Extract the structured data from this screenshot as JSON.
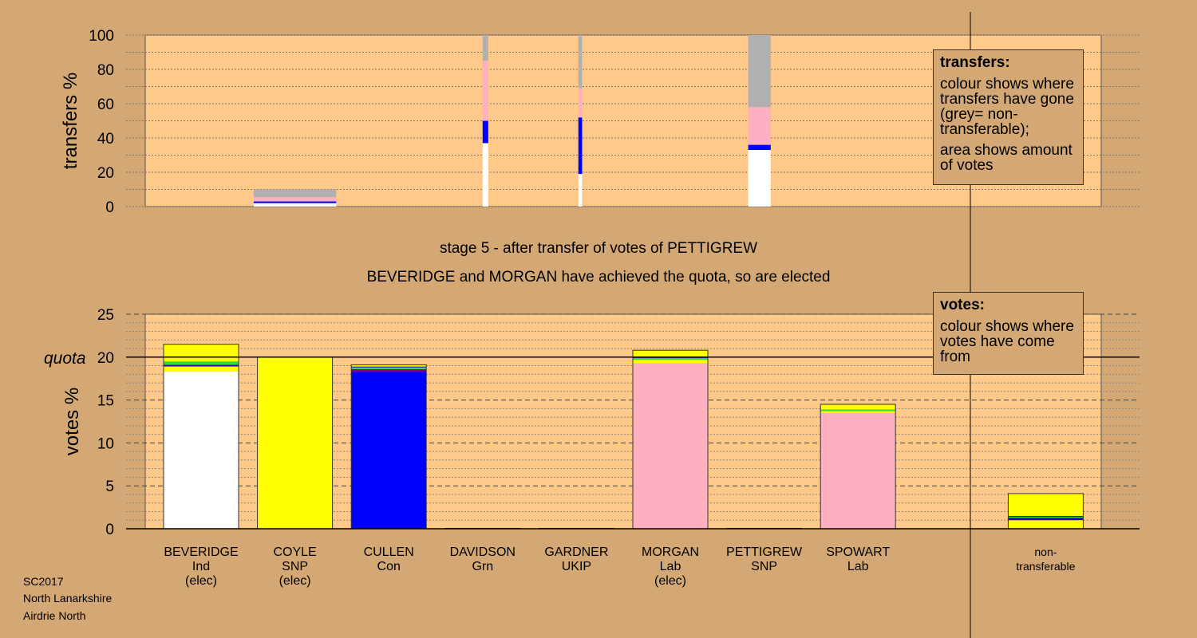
{
  "stage_title": "stage 5 - after transfer of votes of PETTIGREW",
  "elected_note": "BEVERIDGE and MORGAN have achieved the quota, so are elected",
  "footer": {
    "line1": "SC2017",
    "line2": "North Lanarkshire",
    "line3": "Airdrie North"
  },
  "legend_transfers": {
    "title": "transfers:",
    "line1": "colour shows where transfers have gone (grey= non-transferable);",
    "line2": "area shows amount of votes"
  },
  "legend_votes": {
    "title": "votes:",
    "line1": "colour shows where votes have come from"
  },
  "colors": {
    "background": "#d3a874",
    "plot_bg": "#ffc98a",
    "Ind": "#ffffff",
    "SNP": "#ffff00",
    "Con": "#0000ff",
    "Grn": "#33dd33",
    "UKIP": "#800080",
    "Lab": "#ffb0c0",
    "nontransferable": "#b0b0b0"
  },
  "chart_data": [
    {
      "type": "bar",
      "id": "transfers",
      "ylabel": "transfers %",
      "ylim": [
        0,
        100
      ],
      "yticks": [
        0,
        20,
        40,
        60,
        80,
        100
      ],
      "bars": [
        {
          "center": 1,
          "width": 0.88,
          "segments": [
            {
              "party": "Ind",
              "value": 2.0
            },
            {
              "party": "Con",
              "value": 1.0
            },
            {
              "party": "Lab",
              "value": 2.5
            },
            {
              "party": "nontransferable",
              "value": 4.5
            }
          ]
        },
        {
          "center": 3.03,
          "width": 0.06,
          "segments": [
            {
              "party": "Ind",
              "value": 37
            },
            {
              "party": "Con",
              "value": 13
            },
            {
              "party": "Lab",
              "value": 35
            },
            {
              "party": "nontransferable",
              "value": 15
            }
          ]
        },
        {
          "center": 4.04,
          "width": 0.04,
          "segments": [
            {
              "party": "Ind",
              "value": 19
            },
            {
              "party": "Con",
              "value": 33
            },
            {
              "party": "Lab",
              "value": 17
            },
            {
              "party": "nontransferable",
              "value": 31
            }
          ]
        },
        {
          "center": 5.95,
          "width": 0.24,
          "segments": [
            {
              "party": "Ind",
              "value": 33
            },
            {
              "party": "Con",
              "value": 3
            },
            {
              "party": "Lab",
              "value": 22
            },
            {
              "party": "nontransferable",
              "value": 42
            }
          ]
        }
      ]
    },
    {
      "type": "bar",
      "id": "votes",
      "ylabel": "votes %",
      "ylim": [
        0,
        25
      ],
      "yticks": [
        0,
        5,
        10,
        15,
        20,
        25
      ],
      "quota": 20,
      "quota_label": "quota",
      "categories": [
        {
          "name": "BEVERIDGE",
          "party": "Ind",
          "status": "(elec)"
        },
        {
          "name": "COYLE",
          "party": "SNP",
          "status": "(elec)"
        },
        {
          "name": "CULLEN",
          "party": "Con",
          "status": ""
        },
        {
          "name": "DAVIDSON",
          "party": "Grn",
          "status": ""
        },
        {
          "name": "GARDNER",
          "party": "UKIP",
          "status": ""
        },
        {
          "name": "MORGAN",
          "party": "Lab",
          "status": "(elec)"
        },
        {
          "name": "PETTIGREW",
          "party": "SNP",
          "status": ""
        },
        {
          "name": "SPOWART",
          "party": "Lab",
          "status": ""
        },
        {
          "name": "",
          "party": "",
          "status": ""
        },
        {
          "name": "non-",
          "party": "transferable",
          "status": ""
        }
      ],
      "segments": [
        [
          {
            "party": "Ind",
            "value": 18.3
          },
          {
            "party": "SNP",
            "value": 0.6
          },
          {
            "party": "UKIP",
            "value": 0.1
          },
          {
            "party": "Con",
            "value": 0.1
          },
          {
            "party": "Grn",
            "value": 0.4
          },
          {
            "party": "SNP",
            "value": 2.0
          }
        ],
        [
          {
            "party": "SNP",
            "value": 20.0
          }
        ],
        [
          {
            "party": "Con",
            "value": 18.3
          },
          {
            "party": "UKIP",
            "value": 0.3
          },
          {
            "party": "Grn",
            "value": 0.2
          },
          {
            "party": "Con",
            "value": 0.1
          },
          {
            "party": "SNP",
            "value": 0.2
          }
        ],
        [
          {
            "party": "Grn",
            "value": 0.05
          }
        ],
        [
          {
            "party": "UKIP",
            "value": 0.05
          }
        ],
        [
          {
            "party": "Lab",
            "value": 19.3
          },
          {
            "party": "SNP",
            "value": 0.4
          },
          {
            "party": "Grn",
            "value": 0.2
          },
          {
            "party": "Con",
            "value": 0.1
          },
          {
            "party": "SNP",
            "value": 0.8
          }
        ],
        [
          {
            "party": "SNP",
            "value": 0.05
          }
        ],
        [
          {
            "party": "Lab",
            "value": 13.5
          },
          {
            "party": "SNP",
            "value": 0.2
          },
          {
            "party": "Grn",
            "value": 0.2
          },
          {
            "party": "SNP",
            "value": 0.6
          }
        ],
        [],
        [
          {
            "party": "SNP",
            "value": 1.0
          },
          {
            "party": "Con",
            "value": 0.2
          },
          {
            "party": "UKIP",
            "value": 0.1
          },
          {
            "party": "Grn",
            "value": 0.1
          },
          {
            "party": "Con",
            "value": 0.1
          },
          {
            "party": "SNP",
            "value": 2.6
          }
        ]
      ]
    }
  ]
}
